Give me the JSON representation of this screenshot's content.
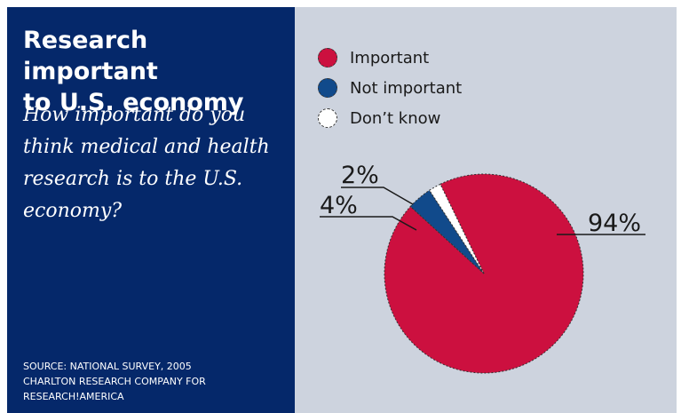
{
  "header": {
    "title_line1": "Research important",
    "title_line2": "to U.S. economy",
    "question_lines": [
      "How important do you",
      "think medical and health",
      "research is to the U.S.",
      "economy?"
    ]
  },
  "source_lines": [
    "SOURCE: NATIONAL SURVEY, 2005",
    "CHARLTON RESEARCH COMPANY FOR",
    "RESEARCH!AMERICA"
  ],
  "colors": {
    "panel": "#05286a",
    "background": "#cdd3de"
  },
  "chart_data": {
    "type": "pie",
    "title": "Research important to U.S. economy",
    "legend_position": "top-left",
    "slices": [
      {
        "name": "Important",
        "value": 94,
        "label": "94%",
        "color": "#cc103f"
      },
      {
        "name": "Not important",
        "value": 4,
        "label": "4%",
        "color": "#114a8b"
      },
      {
        "name": "Don’t know",
        "value": 2,
        "label": "2%",
        "color": "#ffffff"
      }
    ]
  }
}
